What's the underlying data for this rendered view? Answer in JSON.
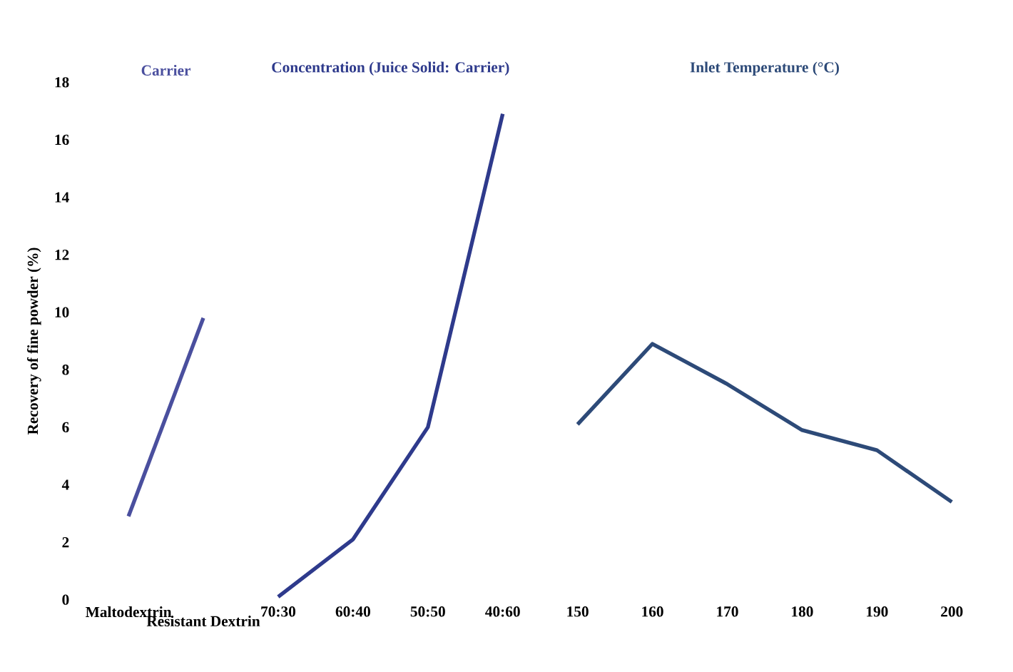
{
  "chart_data": {
    "type": "line",
    "ylabel": "Recovery of fine powder (%)",
    "categories": [
      "Maltodextrin",
      "Resistant Dextrin",
      "70:30",
      "60:40",
      "50:50",
      "40:60",
      "150",
      "160",
      "170",
      "180",
      "190",
      "200"
    ],
    "series": [
      {
        "name": "Carrier",
        "color": "#4a4f9e",
        "values": [
          2.9,
          9.8,
          null,
          null,
          null,
          null,
          null,
          null,
          null,
          null,
          null,
          null
        ]
      },
      {
        "name": "Concentration (Juice Solid: Carrier)",
        "color": "#2e3a8c",
        "values": [
          null,
          null,
          0.1,
          2.1,
          6.0,
          16.9,
          null,
          null,
          null,
          null,
          null,
          null
        ]
      },
      {
        "name": "Inlet Temperature (°C)",
        "color": "#2d4a78",
        "values": [
          null,
          null,
          null,
          null,
          null,
          null,
          6.1,
          8.9,
          7.5,
          5.9,
          5.2,
          3.4
        ]
      }
    ],
    "ylim": [
      0,
      18
    ],
    "yticks": [
      0,
      2,
      4,
      6,
      8,
      10,
      12,
      14,
      16,
      18
    ],
    "legend": false,
    "marker": "none",
    "line_style": "solid"
  }
}
